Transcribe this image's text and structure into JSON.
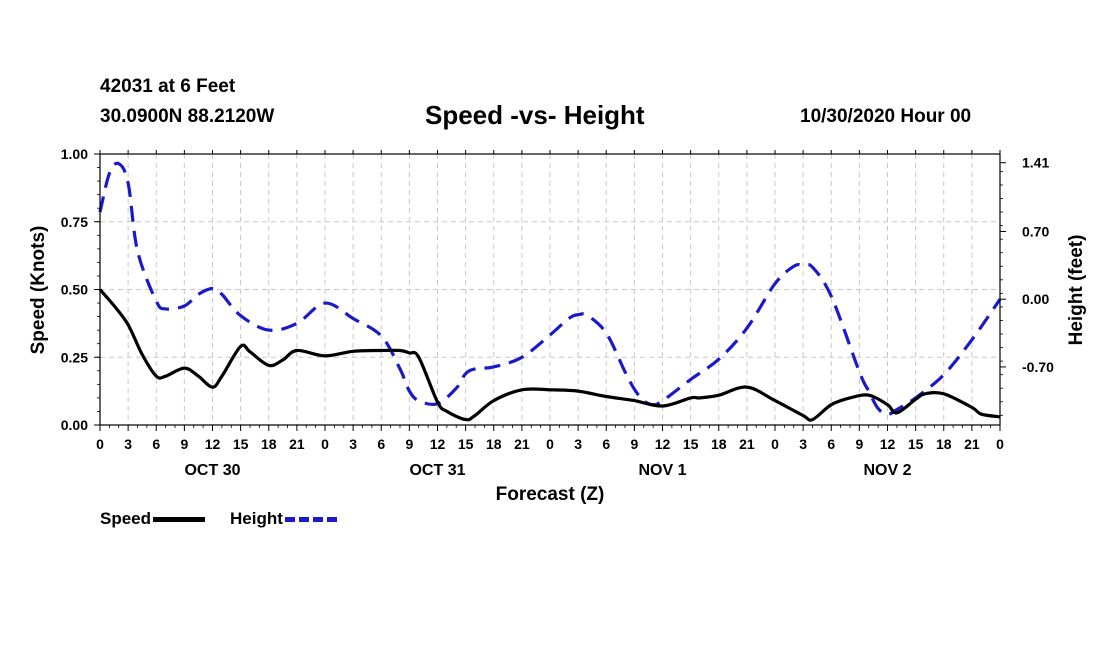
{
  "header": {
    "station": "42031 at 6 Feet",
    "location": "30.0900N 88.2120W",
    "title": "Speed -vs- Height",
    "datetime": "10/30/2020 Hour 00"
  },
  "legend": {
    "speed_label": "Speed",
    "height_label": "Height"
  },
  "colors": {
    "speed": "#000000",
    "height": "#1a1acc",
    "grid": "#c8c8c8"
  },
  "chart_data": {
    "type": "line",
    "title": "Speed -vs- Height",
    "xlabel": "Forecast (Z)",
    "ylabel": "Speed (Knots)",
    "ylabel_right": "Height (feet)",
    "xlim": [
      0,
      96
    ],
    "ylim": [
      0,
      1.0
    ],
    "ylim_right": [
      -1.3,
      1.5
    ],
    "x_tick_values": [
      0,
      3,
      6,
      9,
      12,
      15,
      18,
      21,
      24,
      27,
      30,
      33,
      36,
      39,
      42,
      45,
      48,
      51,
      54,
      57,
      60,
      63,
      66,
      69,
      72,
      75,
      78,
      81,
      84,
      87,
      90,
      93,
      96
    ],
    "x_tick_labels": [
      "0",
      "3",
      "6",
      "9",
      "12",
      "15",
      "18",
      "21",
      "0",
      "3",
      "6",
      "9",
      "12",
      "15",
      "18",
      "21",
      "0",
      "3",
      "6",
      "9",
      "12",
      "15",
      "18",
      "21",
      "0",
      "3",
      "6",
      "9",
      "12",
      "15",
      "18",
      "21",
      "0"
    ],
    "date_labels": [
      {
        "x": 12,
        "label": "OCT 30"
      },
      {
        "x": 36,
        "label": "OCT 31"
      },
      {
        "x": 60,
        "label": "NOV 1"
      },
      {
        "x": 84,
        "label": "NOV 2"
      }
    ],
    "y_ticks_left": [
      {
        "value": 0.0,
        "label": "0.00"
      },
      {
        "value": 0.25,
        "label": "0.25"
      },
      {
        "value": 0.5,
        "label": "0.50"
      },
      {
        "value": 0.75,
        "label": "0.75"
      },
      {
        "value": 1.0,
        "label": "1.00"
      }
    ],
    "y_ticks_right": [
      {
        "value": 1.41,
        "label": "1.41"
      },
      {
        "value": 0.7,
        "label": "0.70"
      },
      {
        "value": 0.0,
        "label": "0.00"
      },
      {
        "value": -0.7,
        "label": "-0.70"
      }
    ],
    "series": [
      {
        "name": "Speed",
        "axis": "left",
        "style": "solid",
        "x": [
          0,
          1.5,
          3,
          4.5,
          6,
          7,
          9,
          10.5,
          12,
          13,
          15,
          16,
          18,
          19.5,
          21,
          24,
          27,
          30,
          32,
          33,
          34,
          36,
          37,
          39,
          40,
          42,
          45,
          48,
          51,
          54,
          57,
          60,
          63,
          64,
          66,
          69,
          72,
          75,
          76,
          78,
          80,
          82,
          84,
          85,
          87,
          88,
          90,
          93,
          94,
          96
        ],
        "y": [
          0.5,
          0.44,
          0.37,
          0.26,
          0.18,
          0.18,
          0.21,
          0.18,
          0.14,
          0.18,
          0.29,
          0.27,
          0.22,
          0.24,
          0.275,
          0.255,
          0.272,
          0.275,
          0.275,
          0.266,
          0.25,
          0.085,
          0.05,
          0.02,
          0.035,
          0.09,
          0.13,
          0.13,
          0.125,
          0.105,
          0.09,
          0.07,
          0.1,
          0.1,
          0.11,
          0.14,
          0.09,
          0.035,
          0.02,
          0.075,
          0.1,
          0.11,
          0.075,
          0.045,
          0.095,
          0.115,
          0.115,
          0.065,
          0.04,
          0.03
        ]
      },
      {
        "name": "Height",
        "axis": "right",
        "style": "dashed",
        "x": [
          0,
          1,
          2,
          3,
          4,
          6,
          7,
          9,
          10.5,
          12,
          13,
          15,
          18,
          21,
          24,
          27,
          30,
          32,
          33,
          34,
          36,
          38,
          39,
          40,
          42,
          45,
          48,
          50,
          51,
          52,
          54,
          56,
          57,
          58,
          59,
          60,
          63,
          66,
          69,
          72,
          74,
          75,
          76,
          78,
          81,
          82,
          83,
          84,
          85,
          87,
          90,
          93,
          96
        ],
        "y": [
          0.9,
          1.3,
          1.4,
          1.2,
          0.5,
          -0.02,
          -0.1,
          -0.07,
          0.05,
          0.11,
          0.05,
          -0.17,
          -0.32,
          -0.25,
          -0.04,
          -0.2,
          -0.38,
          -0.72,
          -0.95,
          -1.05,
          -1.08,
          -0.92,
          -0.77,
          -0.72,
          -0.7,
          -0.6,
          -0.37,
          -0.2,
          -0.16,
          -0.17,
          -0.35,
          -0.75,
          -0.93,
          -1.05,
          -1.09,
          -1.05,
          -0.83,
          -0.62,
          -0.3,
          0.16,
          0.34,
          0.35,
          0.33,
          0.03,
          -0.75,
          -0.95,
          -1.13,
          -1.19,
          -1.14,
          -1.02,
          -0.78,
          -0.42,
          0.0
        ]
      }
    ]
  }
}
